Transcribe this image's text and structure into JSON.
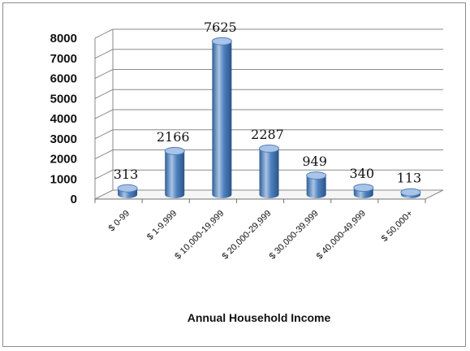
{
  "chart_data": {
    "type": "bar",
    "title": "",
    "xlabel": "Annual Household Income",
    "ylabel": "",
    "ylim": [
      0,
      8000
    ],
    "yticks": [
      0,
      1000,
      2000,
      3000,
      4000,
      5000,
      6000,
      7000,
      8000
    ],
    "categories": [
      "$ 0-99",
      "$ 1-9,999",
      "$ 10,000-19,999",
      "$ 20,000-29,999",
      "$ 30,000-39,999",
      "$ 40,000-49,999",
      "$ 50,000+"
    ],
    "values": [
      313,
      2166,
      7625,
      2287,
      949,
      340,
      113
    ],
    "data_labels": [
      "313",
      "2166",
      "7625",
      "2287",
      "949",
      "340",
      "113"
    ],
    "grid": true,
    "legend": "none",
    "style": "3d-cylinder",
    "colors": {
      "bar": "#4f81bd",
      "bar_dark": "#2f5f96",
      "bar_light": "#a9c4e6",
      "grid": "#8a8a8a"
    }
  }
}
